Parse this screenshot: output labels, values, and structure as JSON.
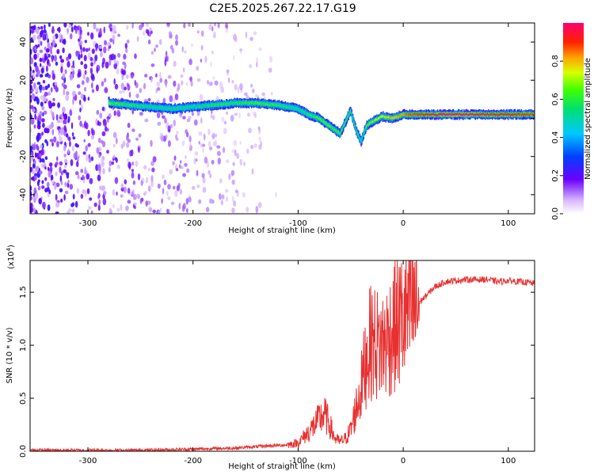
{
  "figure": {
    "title": "C2E5.2025.267.22.17.G19"
  },
  "chart_data": [
    {
      "type": "heatmap",
      "title": "C2E5.2025.267.22.17.G19",
      "xlabel": "Height of straight line (km)",
      "ylabel": "Frequency (Hz)",
      "xlim": [
        -355,
        125
      ],
      "ylim": [
        -50,
        50
      ],
      "x_ticks": [
        -300,
        -200,
        -100,
        0,
        100
      ],
      "x_tick_labels": [
        "-300",
        "-200",
        "-100",
        "0",
        "100"
      ],
      "y_ticks": [
        -40,
        -20,
        0,
        20,
        40
      ],
      "y_tick_labels": [
        "-40",
        "-20",
        "0",
        "20",
        "40"
      ],
      "colorbar": {
        "label": "Normalized spectral amplitude",
        "range": [
          0,
          1
        ],
        "ticks": [
          0.0,
          0.2,
          0.4,
          0.6,
          0.8
        ],
        "tick_labels": [
          "0.0",
          "0.2",
          "0.4",
          "0.6",
          "0.8"
        ]
      },
      "ridge": {
        "x": [
          -280,
          -260,
          -240,
          -220,
          -200,
          -180,
          -160,
          -140,
          -120,
          -100,
          -90,
          -80,
          -70,
          -60,
          -55,
          -50,
          -45,
          -40,
          -35,
          -30,
          -20,
          -10,
          0,
          20,
          40,
          60,
          80,
          100,
          125
        ],
        "freq": [
          8,
          7,
          6,
          5,
          6,
          7,
          8,
          8,
          7,
          5,
          2,
          0,
          -4,
          -8,
          -2,
          4,
          -6,
          -12,
          -4,
          -2,
          1,
          0,
          2,
          2,
          2,
          2,
          2,
          2,
          2
        ],
        "amplitude": [
          0.6,
          0.55,
          0.5,
          0.5,
          0.5,
          0.55,
          0.55,
          0.6,
          0.55,
          0.5,
          0.55,
          0.6,
          0.6,
          0.6,
          0.55,
          0.55,
          0.55,
          0.5,
          0.6,
          0.65,
          0.7,
          0.75,
          0.8,
          0.9,
          0.95,
          0.95,
          0.9,
          0.9,
          0.85
        ]
      },
      "noise_region_x": [
        -355,
        -120
      ]
    },
    {
      "type": "line",
      "xlabel": "Height of straight line (km)",
      "ylabel": "SNR (10 * v/v)",
      "y_exponent_label": "(x10",
      "y_exponent": "4",
      "y_exponent_close": ")",
      "xlim": [
        -355,
        125
      ],
      "ylim": [
        0.0,
        1.8
      ],
      "x_ticks": [
        -300,
        -200,
        -100,
        0,
        100
      ],
      "x_tick_labels": [
        "-300",
        "-200",
        "-100",
        "0",
        "100"
      ],
      "y_ticks": [
        0.0,
        0.5,
        1.0,
        1.5
      ],
      "y_tick_labels": [
        "0.0",
        "0.5",
        "1.0",
        "1.5"
      ],
      "color": "#e83030",
      "series": [
        {
          "name": "SNR",
          "x": [
            -355,
            -300,
            -250,
            -200,
            -160,
            -130,
            -110,
            -100,
            -90,
            -80,
            -75,
            -70,
            -65,
            -60,
            -55,
            -50,
            -45,
            -40,
            -35,
            -30,
            -25,
            -20,
            -15,
            -10,
            -5,
            0,
            5,
            10,
            15,
            20,
            25,
            30,
            40,
            60,
            80,
            90,
            100,
            110,
            120,
            125
          ],
          "y": [
            0.01,
            0.01,
            0.01,
            0.02,
            0.03,
            0.05,
            0.06,
            0.08,
            0.18,
            0.3,
            0.35,
            0.25,
            0.12,
            0.09,
            0.12,
            0.2,
            0.4,
            0.6,
            0.9,
            1.05,
            1.0,
            1.0,
            1.05,
            1.15,
            1.2,
            1.25,
            1.3,
            1.35,
            1.4,
            1.45,
            1.5,
            1.55,
            1.6,
            1.62,
            1.62,
            1.6,
            1.61,
            1.6,
            1.59,
            1.58
          ]
        }
      ]
    }
  ]
}
